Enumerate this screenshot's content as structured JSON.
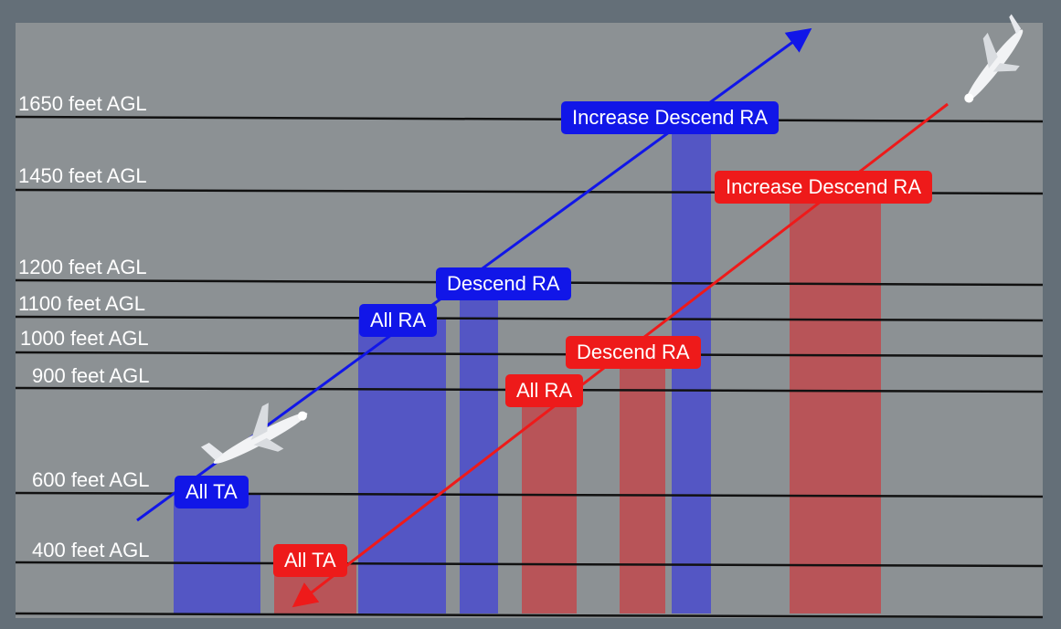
{
  "altitude_labels": [
    {
      "text": "1650 feet AGL"
    },
    {
      "text": "1450 feet AGL"
    },
    {
      "text": "1200 feet AGL"
    },
    {
      "text": "1100 feet AGL"
    },
    {
      "text": "1000 feet AGL"
    },
    {
      "text": "900 feet AGL"
    },
    {
      "text": "600 feet AGL"
    },
    {
      "text": "400 feet AGL"
    }
  ],
  "blue_badges": {
    "all_ta": "All TA",
    "all_ra": "All RA",
    "descend_ra": "Descend RA",
    "increase_descend_ra": "Increase Descend RA"
  },
  "red_badges": {
    "all_ta": "All TA",
    "all_ra": "All RA",
    "descend_ra": "Descend RA",
    "increase_descend_ra": "Increase Descend RA"
  },
  "colors": {
    "background": "#646f78",
    "panel": "#8c9194",
    "blue_accent": "#1116e8",
    "red_accent": "#ee1a1a",
    "blue_bar": "#5456c4",
    "red_bar": "#b85458",
    "line": "#111111"
  },
  "icons": [
    "climbing-aircraft-icon",
    "descending-aircraft-icon"
  ]
}
